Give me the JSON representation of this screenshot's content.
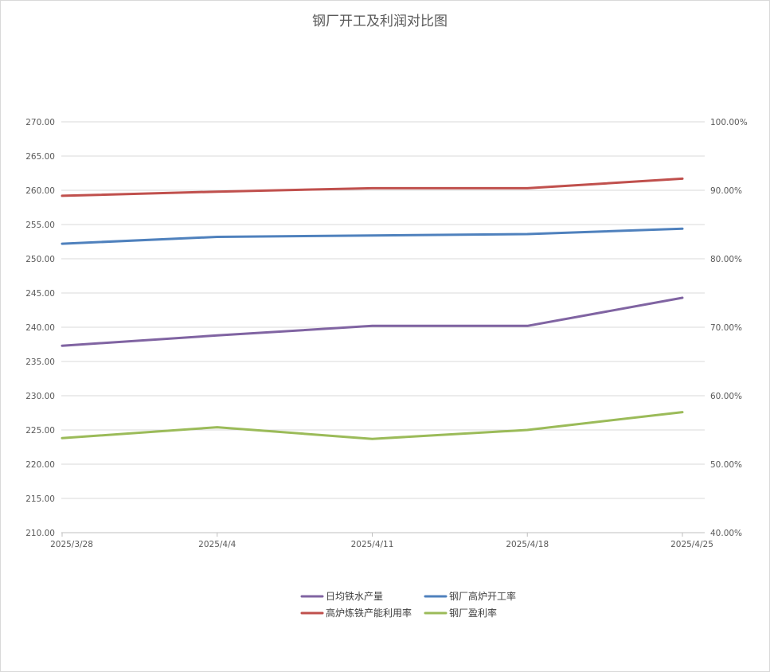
{
  "chart_data": {
    "type": "line",
    "title": "钢厂开工及利润对比图",
    "categories": [
      "2025/3/28",
      "2025/4/4",
      "2025/4/11",
      "2025/4/18",
      "2025/4/25"
    ],
    "y_left": {
      "min": 210,
      "max": 270,
      "step": 5,
      "tick_labels": [
        "210.00",
        "215.00",
        "220.00",
        "225.00",
        "230.00",
        "235.00",
        "240.00",
        "245.00",
        "250.00",
        "255.00",
        "260.00",
        "265.00",
        "270.00"
      ]
    },
    "y_right": {
      "min": 0.4,
      "max": 1.0,
      "step": 0.1,
      "tick_labels": [
        "40.00%",
        "50.00%",
        "60.00%",
        "70.00%",
        "80.00%",
        "90.00%",
        "100.00%"
      ]
    },
    "grid": true,
    "legend_position": "bottom",
    "series": [
      {
        "name": "日均铁水产量",
        "axis": "left",
        "color": "#8064a2",
        "values": [
          237.3,
          238.8,
          240.2,
          240.2,
          244.3
        ]
      },
      {
        "name": "钢厂高炉开工率",
        "axis": "right",
        "color": "#4f81bd",
        "values": [
          0.822,
          0.832,
          0.834,
          0.836,
          0.844
        ]
      },
      {
        "name": "高炉炼铁产能利用率",
        "axis": "right",
        "color": "#c0504d",
        "values": [
          0.892,
          0.898,
          0.903,
          0.903,
          0.917
        ]
      },
      {
        "name": "钢厂盈利率",
        "axis": "right",
        "color": "#9bbb59",
        "values": [
          0.538,
          0.554,
          0.537,
          0.55,
          0.576
        ]
      }
    ]
  }
}
